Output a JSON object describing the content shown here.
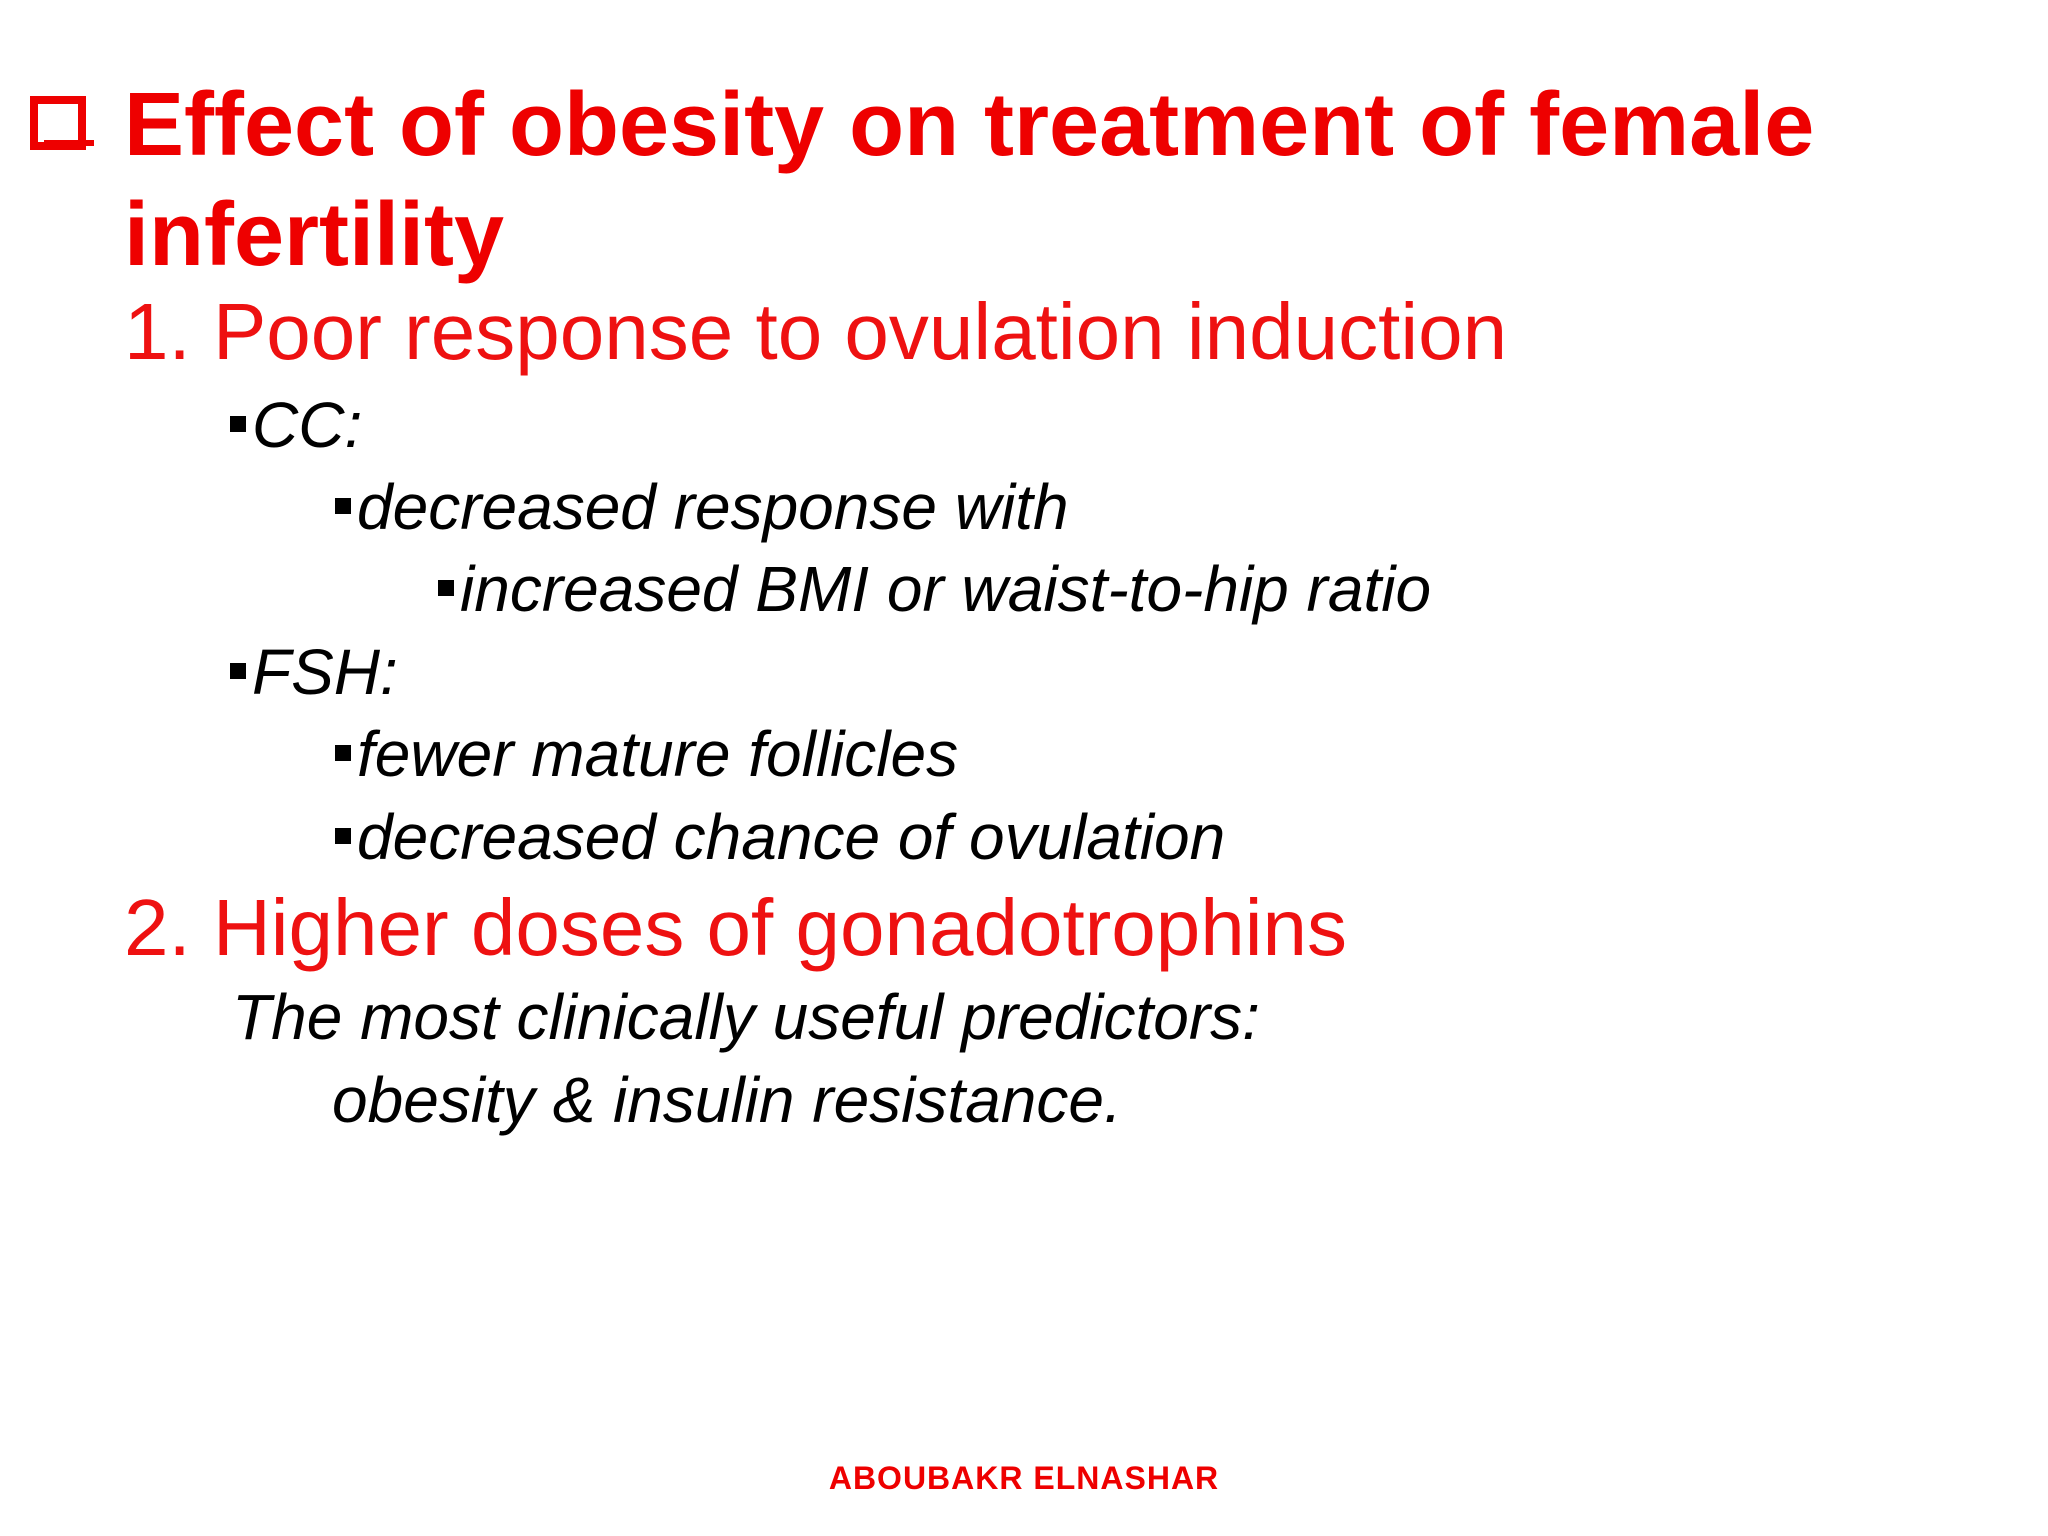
{
  "title": {
    "line1": "Effect of obesity on treatment of female",
    "line2": "infertility",
    "icon": "checkbox-icon"
  },
  "sections": [
    {
      "heading": "1. Poor response to ovulation induction",
      "items": [
        {
          "label": "CC:",
          "sub": [
            {
              "label": "decreased response with",
              "sub": [
                {
                  "label": "increased BMI or waist-to-hip ratio"
                }
              ]
            }
          ]
        },
        {
          "label": "FSH:",
          "sub": [
            {
              "label": "fewer mature follicles"
            },
            {
              "label": "decreased chance of ovulation"
            }
          ]
        }
      ]
    },
    {
      "heading": "2. Higher doses of gonadotrophins",
      "text_line1": "The most clinically useful predictors:",
      "text_line2": "obesity & insulin resistance."
    }
  ],
  "footer": "ABOUBAKR ELNASHAR",
  "colors": {
    "accent": "#ee0000",
    "text": "#000000",
    "background": "#ffffff"
  }
}
